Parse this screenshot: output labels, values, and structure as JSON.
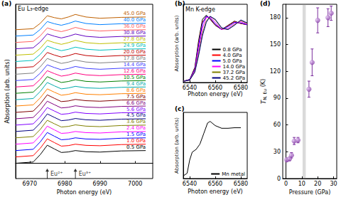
{
  "chart_data": [
    {
      "panel_label": "(a)",
      "type": "line",
      "title": "Eu L₃-edge",
      "xlabel": "Photon energy (eV)",
      "ylabel": "Absorption (arb. units)",
      "xlim": [
        6966,
        7005
      ],
      "xticks": [
        6970,
        6980,
        6990,
        7000
      ],
      "ylim": [
        -1.2,
        12.5
      ],
      "tick_labels": "x",
      "x": [
        6966,
        6971,
        6973,
        6975,
        6977,
        6979,
        6981,
        6983,
        6986,
        6990,
        6996,
        7003
      ],
      "series": [
        {
          "name": "0.5 GPa",
          "color": "#000000",
          "values": [
            0,
            0.1,
            0.68,
            1.42,
            1.13,
            0.85,
            0.89,
            1.0,
            0.91,
            0.88,
            0.97,
            1.0
          ]
        },
        {
          "name": "1.0 GPa",
          "color": "#ff0000",
          "values": [
            0.5,
            0.6,
            1.18,
            1.92,
            1.63,
            1.35,
            1.39,
            1.5,
            1.41,
            1.38,
            1.47,
            1.5
          ]
        },
        {
          "name": "1.5 GPa",
          "color": "#0000ff",
          "values": [
            1.0,
            1.1,
            1.68,
            2.42,
            2.13,
            1.85,
            1.89,
            2.0,
            1.91,
            1.88,
            1.97,
            2.0
          ]
        },
        {
          "name": "2.4 GPa",
          "color": "#ff00ff",
          "values": [
            1.5,
            1.6,
            2.18,
            2.92,
            2.63,
            2.35,
            2.39,
            2.5,
            2.41,
            2.38,
            2.47,
            2.5
          ]
        },
        {
          "name": "3.6 GPa",
          "color": "#808000",
          "values": [
            2.0,
            2.1,
            2.66,
            3.38,
            3.11,
            2.85,
            2.9,
            3.02,
            2.92,
            2.88,
            2.97,
            3.0
          ]
        },
        {
          "name": "4.5 GPa",
          "color": "#000080",
          "values": [
            2.5,
            2.6,
            3.16,
            3.88,
            3.61,
            3.35,
            3.4,
            3.52,
            3.42,
            3.38,
            3.47,
            3.5
          ]
        },
        {
          "name": "5.6 GPa",
          "color": "#8000ff",
          "values": [
            3.0,
            3.1,
            3.66,
            4.38,
            4.11,
            3.85,
            3.9,
            4.02,
            3.92,
            3.88,
            3.97,
            4.0
          ]
        },
        {
          "name": "6.6 GPa",
          "color": "#800080",
          "values": [
            3.5,
            3.6,
            4.16,
            4.88,
            4.61,
            4.35,
            4.4,
            4.52,
            4.42,
            4.38,
            4.47,
            4.5
          ]
        },
        {
          "name": "7.5 GPa",
          "color": "#800000",
          "values": [
            4.0,
            4.1,
            4.66,
            5.38,
            5.11,
            4.85,
            4.9,
            5.02,
            4.92,
            4.88,
            4.97,
            5.0
          ]
        },
        {
          "name": "8.6 GPa",
          "color": "#ff8000",
          "values": [
            4.5,
            4.59,
            5.14,
            5.85,
            5.59,
            5.35,
            5.42,
            5.55,
            5.43,
            5.39,
            5.47,
            5.5
          ]
        },
        {
          "name": "9.4 GPa",
          "color": "#00aaaa",
          "values": [
            5.0,
            5.09,
            5.64,
            6.35,
            6.09,
            5.85,
            5.92,
            6.05,
            5.93,
            5.89,
            5.97,
            6.0
          ]
        },
        {
          "name": "10.5 GPa",
          "color": "#008000",
          "values": [
            5.5,
            5.59,
            6.12,
            6.81,
            6.57,
            6.35,
            6.43,
            6.57,
            6.44,
            6.39,
            6.47,
            6.5
          ]
        },
        {
          "name": "12.6 GPa",
          "color": "#ff0080",
          "values": [
            6.0,
            6.09,
            6.6,
            7.28,
            7.05,
            6.85,
            6.94,
            7.09,
            6.95,
            6.89,
            6.97,
            7.0
          ]
        },
        {
          "name": "14.4 GPa",
          "color": "#4040ff",
          "values": [
            6.5,
            6.59,
            7.08,
            7.74,
            7.53,
            7.35,
            7.45,
            7.61,
            7.46,
            7.39,
            7.47,
            7.5
          ]
        },
        {
          "name": "17.8 GPa",
          "color": "#808080",
          "values": [
            7.0,
            7.09,
            7.58,
            8.24,
            8.03,
            7.85,
            7.95,
            8.11,
            7.96,
            7.89,
            7.97,
            8.0
          ]
        },
        {
          "name": "20.0 GPa",
          "color": "#c00000",
          "values": [
            7.5,
            7.59,
            8.06,
            8.71,
            8.51,
            8.35,
            8.46,
            8.63,
            8.47,
            8.39,
            8.47,
            8.5
          ]
        },
        {
          "name": "24.9 GPa",
          "color": "#00c0c0",
          "values": [
            8.0,
            8.09,
            8.56,
            9.21,
            9.01,
            8.85,
            8.96,
            9.13,
            8.97,
            8.89,
            8.97,
            9.0
          ]
        },
        {
          "name": "27.8 GPa",
          "color": "#c0c000",
          "values": [
            8.5,
            8.58,
            9.04,
            9.67,
            9.49,
            9.35,
            9.48,
            9.66,
            9.48,
            9.4,
            9.47,
            9.5
          ]
        },
        {
          "name": "30.8 GPa",
          "color": "#6000c0",
          "values": [
            9.0,
            9.08,
            9.54,
            10.17,
            9.99,
            9.85,
            9.98,
            10.16,
            9.98,
            9.9,
            9.97,
            10.0
          ]
        },
        {
          "name": "36.0 GPa",
          "color": "#ff6060",
          "values": [
            9.5,
            9.58,
            10.02,
            10.64,
            10.47,
            10.35,
            10.49,
            10.68,
            10.49,
            10.4,
            10.47,
            10.5
          ]
        },
        {
          "name": "40.0 GPa",
          "color": "#0080ff",
          "values": [
            10.0,
            10.08,
            10.52,
            11.14,
            10.97,
            10.85,
            10.99,
            11.18,
            10.99,
            10.9,
            10.97,
            11.0
          ]
        },
        {
          "name": "45.0 GPa",
          "color": "#c06000",
          "values": [
            10.5,
            10.58,
            11.0,
            11.6,
            11.45,
            11.35,
            11.5,
            11.7,
            11.5,
            11.4,
            11.47,
            11.5
          ]
        }
      ],
      "annotations": [
        {
          "text": "Eu²⁺",
          "x": 6975
        },
        {
          "text": "Eu³⁺",
          "x": 6983
        }
      ]
    },
    {
      "panel_label": "(b)",
      "type": "line",
      "title": "Mn K-edge",
      "xlabel": "Photon energy (eV)",
      "ylabel": "Absorption (arb. units)",
      "xlim": [
        6535,
        6585
      ],
      "xticks": [
        6540,
        6560,
        6580
      ],
      "ylim": [
        0,
        1.3
      ],
      "tick_labels": "x",
      "legend": "lower right",
      "x": [
        6535,
        6540,
        6544,
        6547,
        6550,
        6553,
        6556,
        6560,
        6565,
        6570,
        6575,
        6580,
        6585
      ],
      "series": [
        {
          "name": "0.8 GPa",
          "color": "#000000",
          "values": [
            0.02,
            0.05,
            0.25,
            0.7,
            1.05,
            1.12,
            1.05,
            0.95,
            0.88,
            0.95,
            1.02,
            0.98,
            0.96
          ]
        },
        {
          "name": "4.0 GPa",
          "color": "#ff0000",
          "values": [
            0.02,
            0.05,
            0.23,
            0.65,
            1.0,
            1.1,
            1.06,
            0.96,
            0.88,
            0.94,
            1.01,
            0.98,
            0.96
          ]
        },
        {
          "name": "5.0 GPa",
          "color": "#0000ff",
          "values": [
            0.02,
            0.05,
            0.22,
            0.62,
            0.98,
            1.1,
            1.07,
            0.97,
            0.88,
            0.93,
            1.0,
            0.99,
            0.96
          ]
        },
        {
          "name": "14.0 GPa",
          "color": "#ff00ff",
          "values": [
            0.02,
            0.04,
            0.2,
            0.55,
            0.9,
            1.08,
            1.09,
            1.0,
            0.88,
            0.9,
            0.98,
            1.01,
            0.97
          ]
        },
        {
          "name": "37.2 GPa",
          "color": "#808000",
          "values": [
            0.02,
            0.04,
            0.18,
            0.48,
            0.82,
            1.02,
            1.1,
            1.04,
            0.9,
            0.88,
            0.96,
            1.03,
            0.98
          ]
        },
        {
          "name": "45.2 GPa",
          "color": "#000080",
          "values": [
            0.02,
            0.04,
            0.17,
            0.45,
            0.78,
            1.0,
            1.1,
            1.05,
            0.91,
            0.88,
            0.95,
            1.04,
            0.99
          ]
        }
      ]
    },
    {
      "panel_label": "(c)",
      "type": "line",
      "xlabel": "Photon energy (eV)",
      "ylabel": "Absorption (arb. units)",
      "xlim": [
        6535,
        6585
      ],
      "xticks": [
        6540,
        6560,
        6580
      ],
      "ylim": [
        0,
        1.25
      ],
      "tick_labels": "x",
      "legend": "lower right",
      "x": [
        6535,
        6538,
        6540,
        6542,
        6545,
        6548,
        6551,
        6554,
        6556,
        6560,
        6565,
        6570,
        6575,
        6580
      ],
      "series": [
        {
          "name": "Mn metal",
          "color": "#000000",
          "values": [
            0.05,
            0.1,
            0.35,
            0.5,
            0.55,
            0.65,
            0.85,
            1.05,
            1.08,
            1.0,
            0.95,
            0.95,
            0.96,
            0.96
          ]
        }
      ]
    },
    {
      "panel_label": "(d)",
      "type": "scatter",
      "xlabel": "Pressure (GPa)",
      "ylabel": [
        "T",
        "N, Eu",
        "(K)"
      ],
      "xlim": [
        -2,
        32
      ],
      "xticks": [
        0,
        10,
        20,
        30
      ],
      "ylim": [
        0,
        195
      ],
      "yticks": [
        0,
        30,
        60,
        90,
        120,
        150,
        180
      ],
      "x": [
        0.5,
        2.2,
        3.5,
        5.2,
        7.6,
        14.5,
        16.5,
        20,
        26.5,
        28.5
      ],
      "values": [
        21,
        22,
        26,
        42,
        43,
        100,
        130,
        177,
        180,
        185
      ],
      "errors": [
        2,
        2,
        3,
        4,
        3,
        9,
        15,
        14,
        10,
        8
      ],
      "shaded_range": [
        10.5,
        12.5
      ],
      "color": "#7b2d9e",
      "marker": "circle"
    }
  ]
}
